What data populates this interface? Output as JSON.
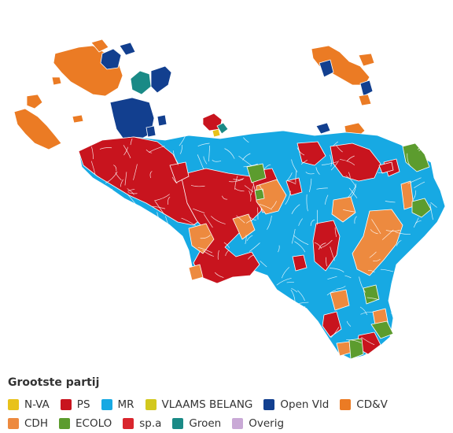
{
  "legend": {
    "title": "Grootste partij",
    "rows": [
      [
        {
          "label": "N-VA",
          "color": "#e8c21b"
        },
        {
          "label": "PS",
          "color": "#c8141e"
        },
        {
          "label": "MR",
          "color": "#17a9e3"
        },
        {
          "label": "VLAAMS BELANG",
          "color": "#d2c81e"
        },
        {
          "label": "Open Vld",
          "color": "#123f8f"
        },
        {
          "label": "CD&V",
          "color": "#eb7b24"
        }
      ],
      [
        {
          "label": "CDH",
          "color": "#ed8a3f"
        },
        {
          "label": "ECOLO",
          "color": "#5c9c2e"
        },
        {
          "label": "sp.a",
          "color": "#d9252d"
        },
        {
          "label": "Groen",
          "color": "#1a8a86"
        },
        {
          "label": "Overig",
          "color": "#c9a9d6"
        }
      ]
    ]
  },
  "map": {
    "colors": {
      "ps": "#c8141e",
      "mr": "#17a9e3",
      "cdh": "#ed8a3f",
      "cdv": "#eb7b24",
      "openvld": "#123f8f",
      "ecolo": "#5c9c2e",
      "groen": "#1a8a86",
      "spa": "#d9252d",
      "nva": "#e8c21b",
      "border": "#ffffff"
    }
  }
}
